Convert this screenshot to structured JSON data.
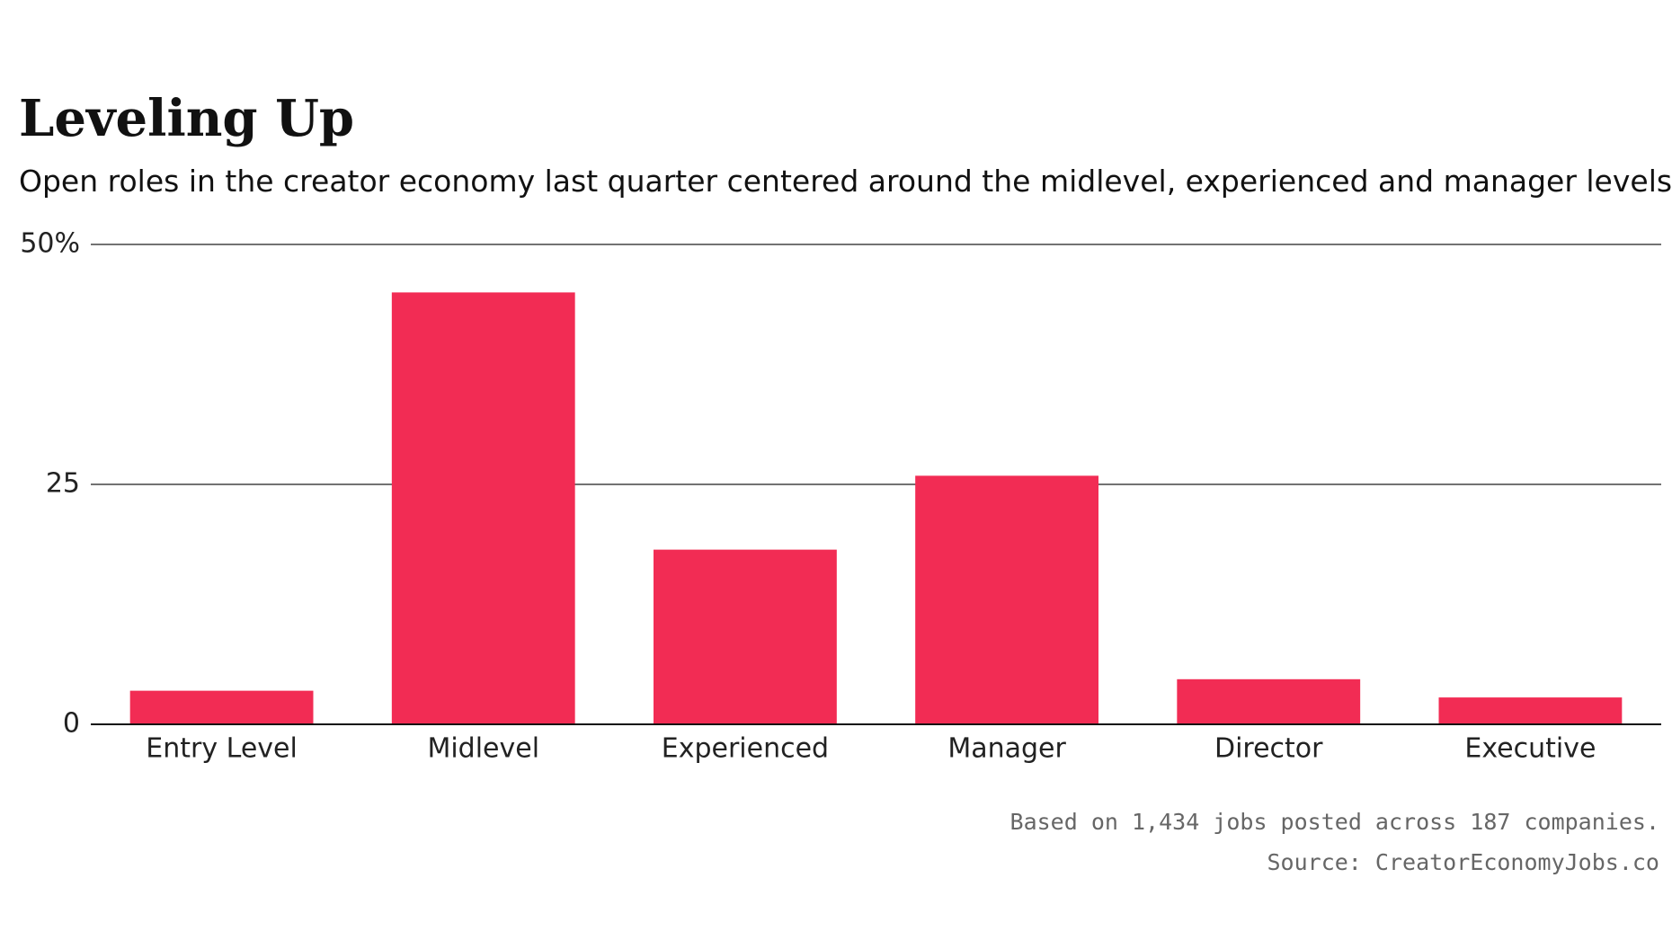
{
  "chart_data": {
    "type": "bar",
    "title": "Leveling Up",
    "subtitle": "Open roles in the creator economy last quarter centered around the midlevel, experienced and manager levels.",
    "categories": [
      "Entry Level",
      "Midlevel",
      "Experienced",
      "Manager",
      "Director",
      "Executive"
    ],
    "values": [
      3.5,
      45,
      18.2,
      25.9,
      4.7,
      2.8
    ],
    "color": "#f22c54",
    "ylim": [
      0,
      50
    ],
    "yticks": [
      0,
      25,
      {
        "value": 50,
        "label": "50%"
      }
    ],
    "grid": true,
    "notes": [
      "Based on 1,434 jobs posted across 187 companies.",
      "Source: CreatorEconomyJobs.co"
    ]
  }
}
